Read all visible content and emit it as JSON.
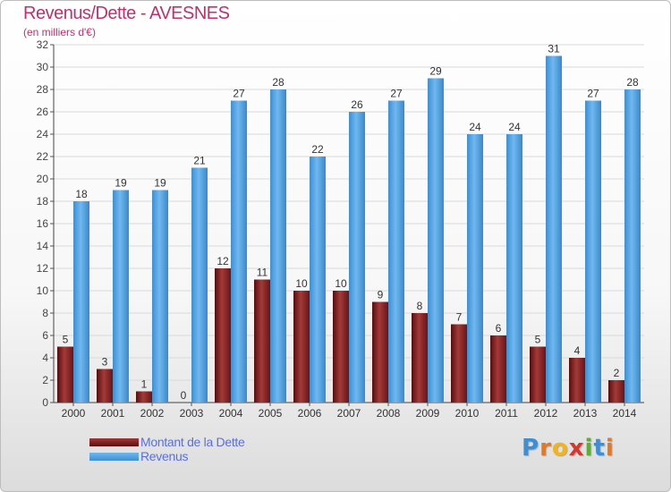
{
  "chart_data": {
    "type": "bar",
    "title": "Revenus/Dette - AVESNES",
    "subtitle": "(en milliers d'€)",
    "categories": [
      "2000",
      "2001",
      "2002",
      "2003",
      "2004",
      "2005",
      "2006",
      "2007",
      "2008",
      "2009",
      "2010",
      "2011",
      "2012",
      "2013",
      "2014"
    ],
    "series": [
      {
        "name": "Montant de la Dette",
        "color": "#7a1a1a",
        "values": [
          5,
          3,
          1,
          0,
          12,
          11,
          10,
          10,
          9,
          8,
          7,
          6,
          5,
          4,
          2
        ]
      },
      {
        "name": "Revenus",
        "color": "#4a9fe0",
        "values": [
          18,
          19,
          19,
          21,
          27,
          28,
          22,
          26,
          27,
          29,
          24,
          24,
          31,
          27,
          28
        ]
      }
    ],
    "ylim": [
      0,
      32
    ],
    "yticks": [
      0,
      2,
      4,
      6,
      8,
      10,
      12,
      14,
      16,
      18,
      20,
      22,
      24,
      26,
      28,
      30,
      32
    ],
    "grid": true,
    "legend": "bottom-left"
  },
  "logo": {
    "letters": [
      "P",
      "r",
      "o",
      "x",
      "i",
      "t",
      "i"
    ],
    "colors": [
      "#3b8fd6",
      "#e87722",
      "#f2b31b",
      "#d6372e",
      "#5bb030",
      "#3b8fd6",
      "#e87722"
    ]
  }
}
